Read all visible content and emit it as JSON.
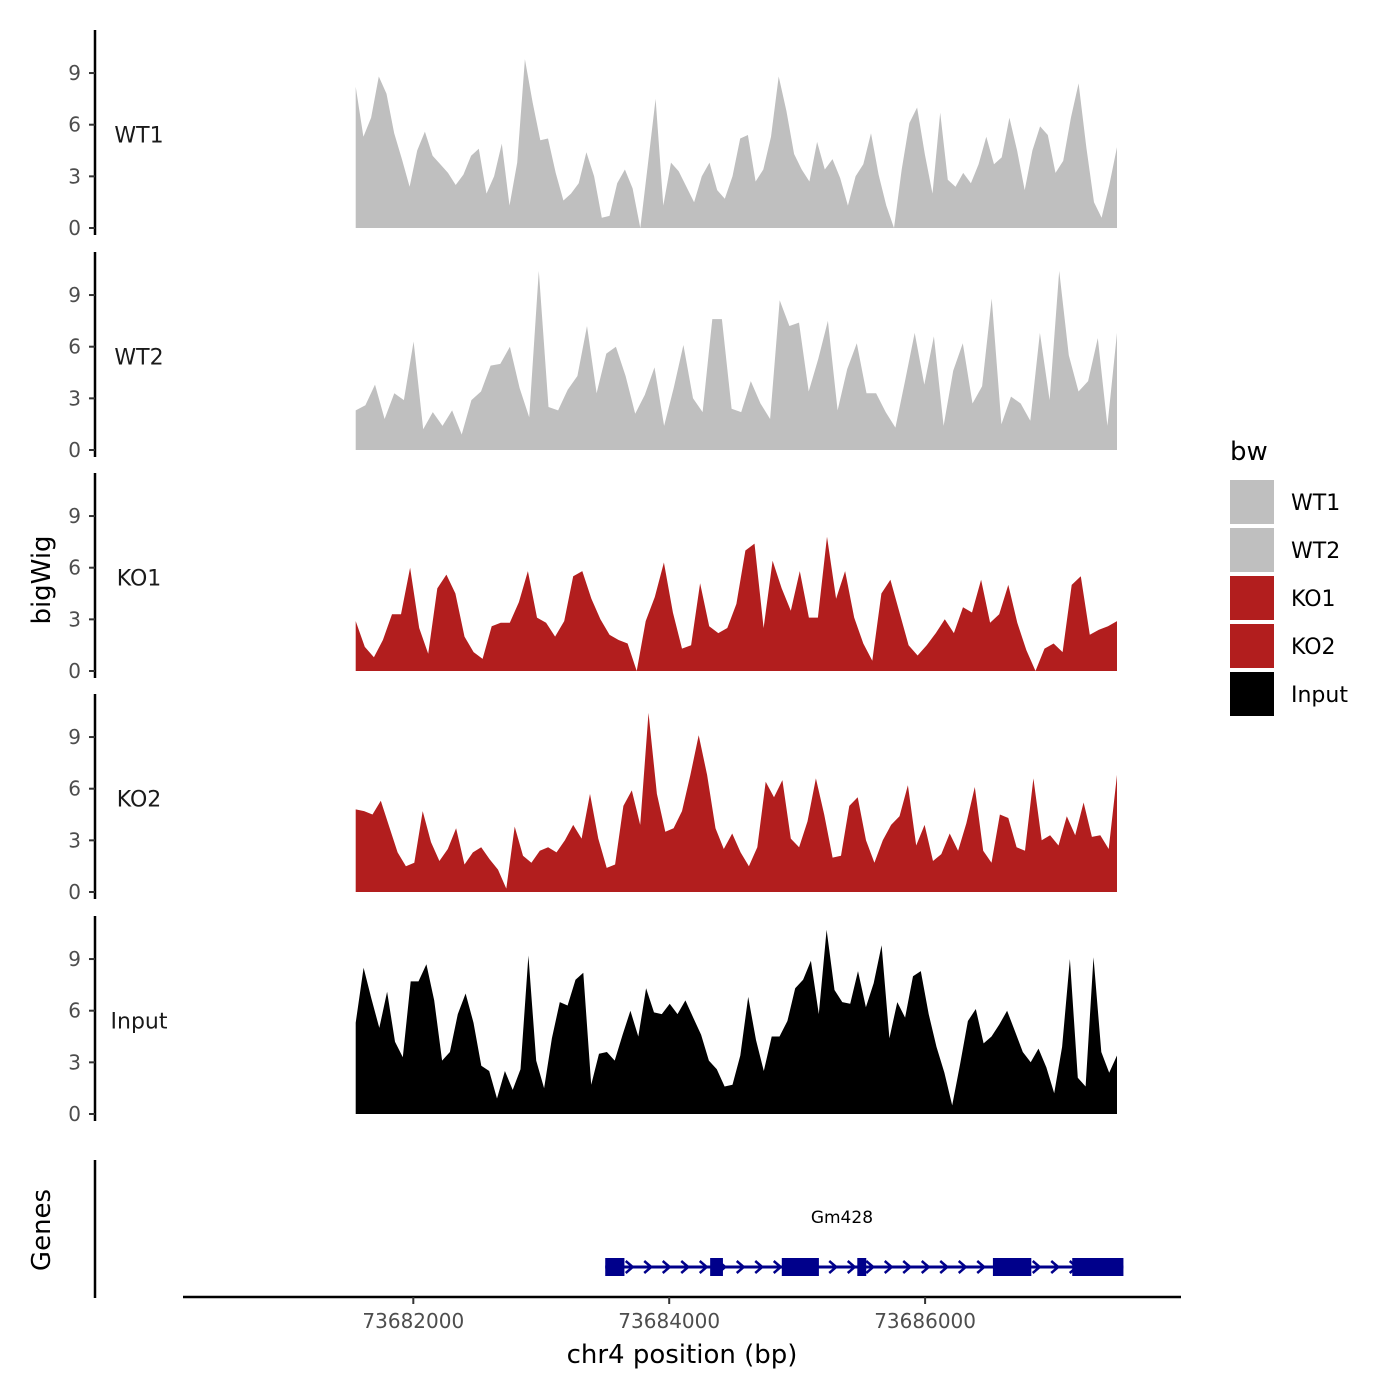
{
  "chart_data": {
    "type": "area",
    "title": "",
    "ylabel": "bigWig",
    "xlabel": "chr4 position (bp)",
    "genes_label": "Genes",
    "xlim": [
      73680200,
      73688000
    ],
    "data_range": [
      73681550,
      73687500
    ],
    "ylim": [
      0,
      11.5
    ],
    "y_ticks": [
      0,
      3,
      6,
      9
    ],
    "x_ticks": [
      73682000,
      73684000,
      73686000
    ],
    "x_tick_labels": [
      "73682000",
      "73684000",
      "73686000"
    ],
    "legend": {
      "title": "bw",
      "position": "right",
      "entries": [
        {
          "label": "WT1",
          "color": "#bfbfbf"
        },
        {
          "label": "WT2",
          "color": "#bfbfbf"
        },
        {
          "label": "KO1",
          "color": "#b21e1e"
        },
        {
          "label": "KO2",
          "color": "#b21e1e"
        },
        {
          "label": "Input",
          "color": "#000000"
        }
      ]
    },
    "series": [
      {
        "name": "WT1",
        "color": "#bfbfbf",
        "gaps": [
          17,
          37
        ],
        "values": [
          8.2,
          5.3,
          6.4,
          8.8,
          7.8,
          5.5,
          4.0,
          2.4,
          4.5,
          5.6,
          4.2,
          3.7,
          3.2,
          2.5,
          3.1,
          4.2,
          4.6,
          2.0,
          3.0,
          4.9,
          1.3,
          3.8,
          9.8,
          7.3,
          5.1,
          5.2,
          3.2,
          1.6,
          2.0,
          2.6,
          4.4,
          3.0,
          0.6,
          0.7,
          2.6,
          3.4,
          2.3,
          0,
          3.7,
          7.5,
          1.3,
          3.8,
          3.3,
          2.4,
          1.5,
          3.0,
          3.8,
          2.2,
          1.7,
          3.0,
          5.2,
          5.4,
          2.7,
          3.4,
          5.3,
          8.8,
          6.8,
          4.3,
          3.4,
          2.7,
          5.0,
          3.4,
          4.0,
          2.9,
          1.3,
          3.0,
          3.7,
          5.5,
          3.1,
          1.3,
          0,
          3.4,
          6.1,
          7.0,
          4.3,
          2.0,
          6.7,
          2.8,
          2.4,
          3.2,
          2.6,
          3.7,
          5.3,
          3.7,
          4.1,
          6.4,
          4.5,
          2.2,
          4.5,
          5.9,
          5.4,
          3.2,
          3.9,
          6.4,
          8.4,
          4.7,
          1.5,
          0.6,
          2.5,
          4.7
        ]
      },
      {
        "name": "WT2",
        "color": "#bfbfbf",
        "gaps": [],
        "values": [
          2.3,
          2.6,
          3.8,
          1.8,
          3.3,
          2.9,
          6.3,
          1.2,
          2.2,
          1.4,
          2.3,
          0.9,
          2.9,
          3.4,
          4.9,
          5.0,
          6.0,
          3.6,
          1.9,
          10.4,
          2.5,
          2.3,
          3.5,
          4.3,
          7.2,
          3.3,
          5.6,
          6.0,
          4.3,
          2.1,
          3.2,
          4.8,
          1.4,
          3.6,
          6.1,
          3.0,
          2.2,
          7.6,
          7.6,
          2.4,
          2.2,
          4.0,
          2.7,
          1.8,
          8.7,
          7.2,
          7.4,
          3.4,
          5.3,
          7.5,
          2.3,
          4.7,
          6.2,
          3.3,
          3.3,
          2.2,
          1.3,
          4.0,
          6.8,
          3.8,
          6.6,
          1.4,
          4.6,
          6.2,
          2.7,
          3.7,
          8.8,
          1.5,
          3.1,
          2.7,
          1.7,
          6.8,
          2.9,
          10.4,
          5.5,
          3.4,
          4.0,
          6.5,
          1.4,
          6.8
        ]
      },
      {
        "name": "KO1",
        "color": "#b21e1e",
        "gaps": [
          31,
          90
        ],
        "values": [
          2.9,
          1.4,
          0.8,
          1.8,
          3.3,
          3.3,
          6.0,
          2.5,
          1.0,
          4.8,
          5.6,
          4.5,
          2.0,
          1.1,
          0.7,
          2.6,
          2.8,
          2.8,
          4.0,
          5.8,
          3.1,
          2.8,
          2.0,
          2.9,
          5.5,
          5.8,
          4.2,
          3.0,
          2.1,
          1.8,
          1.6,
          0,
          2.9,
          4.3,
          6.3,
          3.4,
          1.3,
          1.5,
          5.1,
          2.6,
          2.2,
          2.5,
          3.9,
          7.0,
          7.4,
          2.5,
          6.4,
          4.8,
          3.5,
          5.8,
          3.1,
          3.1,
          7.8,
          4.2,
          5.8,
          3.1,
          1.6,
          0.6,
          4.5,
          5.3,
          3.4,
          1.5,
          0.9,
          1.5,
          2.2,
          3.0,
          2.2,
          3.7,
          3.4,
          5.3,
          2.8,
          3.3,
          5.0,
          2.8,
          1.2,
          0,
          1.3,
          1.6,
          1.1,
          5.0,
          5.5,
          2.1,
          2.4,
          2.6,
          2.9
        ]
      },
      {
        "name": "KO2",
        "color": "#b21e1e",
        "gaps": [],
        "values": [
          4.8,
          4.7,
          4.5,
          5.3,
          3.8,
          2.3,
          1.5,
          1.7,
          4.7,
          2.9,
          1.8,
          2.5,
          3.7,
          1.6,
          2.3,
          2.6,
          1.9,
          1.3,
          0.2,
          3.8,
          2.1,
          1.7,
          2.4,
          2.6,
          2.3,
          3.0,
          3.9,
          3.1,
          5.7,
          3.1,
          1.4,
          1.6,
          5.0,
          5.9,
          3.9,
          10.4,
          5.7,
          3.5,
          3.7,
          4.7,
          6.8,
          9.1,
          6.8,
          3.7,
          2.5,
          3.4,
          2.3,
          1.5,
          2.6,
          6.4,
          5.5,
          6.5,
          3.1,
          2.6,
          4.1,
          6.6,
          4.5,
          2.0,
          2.1,
          5.0,
          5.5,
          3.0,
          1.7,
          3.0,
          3.9,
          4.4,
          6.2,
          2.7,
          3.9,
          1.8,
          2.2,
          3.4,
          2.4,
          4.0,
          6.1,
          2.4,
          1.7,
          4.5,
          4.3,
          2.6,
          2.4,
          6.6,
          3.0,
          3.3,
          2.7,
          4.4,
          3.3,
          5.2,
          3.2,
          3.3,
          2.5,
          6.8
        ]
      },
      {
        "name": "Input",
        "color": "#000000",
        "gaps": [],
        "values": [
          5.3,
          8.5,
          6.7,
          5.0,
          7.1,
          4.2,
          3.3,
          7.7,
          7.7,
          8.7,
          6.6,
          3.1,
          3.6,
          5.8,
          7.0,
          5.3,
          2.8,
          2.5,
          0.9,
          2.5,
          1.4,
          2.6,
          9.2,
          3.1,
          1.5,
          4.4,
          6.5,
          6.3,
          7.8,
          8.2,
          1.7,
          3.5,
          3.6,
          3.1,
          4.6,
          6.0,
          4.5,
          7.3,
          5.9,
          5.8,
          6.4,
          5.8,
          6.6,
          5.6,
          4.6,
          3.1,
          2.6,
          1.6,
          1.7,
          3.4,
          6.8,
          4.3,
          2.5,
          4.5,
          4.5,
          5.4,
          7.3,
          7.8,
          8.9,
          5.8,
          10.7,
          7.2,
          6.5,
          6.4,
          8.3,
          6.2,
          7.6,
          9.8,
          4.4,
          6.5,
          5.6,
          8.0,
          8.3,
          5.8,
          3.9,
          2.4,
          0.5,
          2.9,
          5.4,
          6.1,
          4.1,
          4.5,
          5.2,
          6.0,
          4.8,
          3.6,
          3.0,
          3.8,
          2.7,
          1.2,
          3.9,
          9.0,
          2.1,
          1.6,
          9.1,
          3.6,
          2.4,
          3.4
        ]
      }
    ],
    "gene_annotation": {
      "name": "Gm428",
      "strand": "+",
      "start": 73683500,
      "end": 73687550,
      "color": "#00008b",
      "exons": [
        [
          73683500,
          73683650
        ],
        [
          73684320,
          73684420
        ],
        [
          73684880,
          73685170
        ],
        [
          73685470,
          73685540
        ],
        [
          73686530,
          73686830
        ],
        [
          73687150,
          73687550
        ]
      ]
    }
  }
}
